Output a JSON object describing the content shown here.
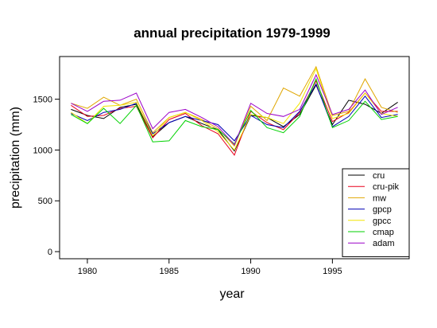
{
  "chart_data": {
    "type": "line",
    "title": "annual precipitation 1979-1999",
    "xlabel": "year",
    "ylabel": "precipitation (mm)",
    "xlim": [
      1978.3,
      1999.7
    ],
    "ylim": [
      -70,
      1920
    ],
    "x_ticks": [
      1980,
      1985,
      1990,
      1995
    ],
    "y_ticks": [
      0,
      500,
      1000,
      1500
    ],
    "grid": false,
    "legend_position": "bottom-right",
    "x": [
      1979,
      1980,
      1981,
      1982,
      1983,
      1984,
      1985,
      1986,
      1987,
      1988,
      1989,
      1990,
      1991,
      1992,
      1993,
      1994,
      1995,
      1996,
      1997,
      1998,
      1999
    ],
    "series": [
      {
        "name": "cru",
        "color": "#000000",
        "values": [
          1400,
          1340,
          1310,
          1420,
          1450,
          1130,
          1270,
          1330,
          1260,
          1200,
          990,
          1340,
          1320,
          1230,
          1350,
          1640,
          1250,
          1490,
          1450,
          1360,
          1470
        ]
      },
      {
        "name": "cru-pik",
        "color": "#e8001c",
        "values": [
          1440,
          1330,
          1340,
          1410,
          1430,
          1120,
          1300,
          1360,
          1240,
          1160,
          950,
          1380,
          1270,
          1200,
          1370,
          1680,
          1280,
          1370,
          1560,
          1380,
          1380
        ]
      },
      {
        "name": "mw",
        "color": "#e0a600",
        "values": [
          1460,
          1410,
          1520,
          1440,
          1500,
          1170,
          1320,
          1370,
          1300,
          1210,
          1040,
          1430,
          1290,
          1610,
          1530,
          1820,
          1340,
          1380,
          1700,
          1420,
          1370
        ]
      },
      {
        "name": "gpcp",
        "color": "#0000b4",
        "values": [
          1360,
          1290,
          1370,
          1400,
          1460,
          1160,
          1270,
          1330,
          1290,
          1250,
          1090,
          1340,
          1250,
          1220,
          1380,
          1650,
          1230,
          1330,
          1530,
          1320,
          1350
        ]
      },
      {
        "name": "gpcc",
        "color": "#f2e600",
        "values": [
          1370,
          1260,
          1430,
          1440,
          1470,
          1140,
          1320,
          1370,
          1290,
          1180,
          1000,
          1350,
          1320,
          1260,
          1460,
          1800,
          1310,
          1360,
          1560,
          1360,
          1330
        ]
      },
      {
        "name": "cmap",
        "color": "#00d200",
        "values": [
          1350,
          1260,
          1410,
          1260,
          1440,
          1080,
          1090,
          1290,
          1230,
          1200,
          1060,
          1390,
          1220,
          1170,
          1330,
          1700,
          1220,
          1290,
          1480,
          1300,
          1330
        ]
      },
      {
        "name": "adam",
        "color": "#9b00c8",
        "values": [
          1460,
          1380,
          1480,
          1490,
          1560,
          1210,
          1370,
          1400,
          1320,
          1230,
          1050,
          1460,
          1360,
          1330,
          1400,
          1740,
          1350,
          1400,
          1590,
          1350,
          1420
        ]
      }
    ]
  }
}
